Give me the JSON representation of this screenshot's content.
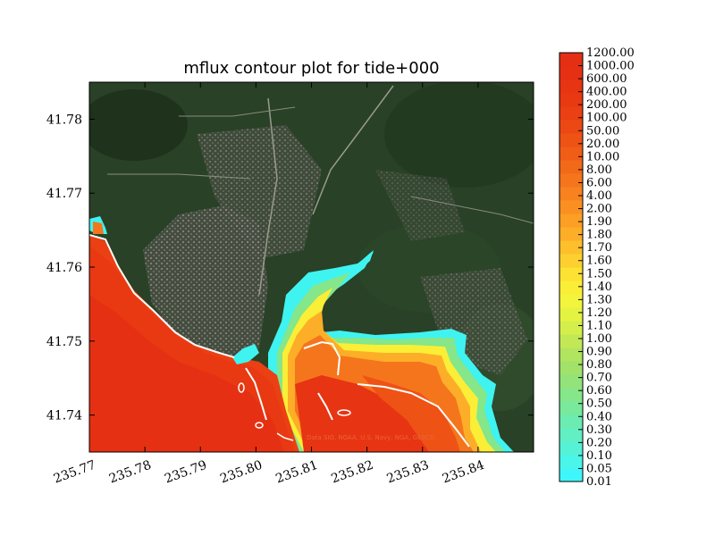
{
  "chart_data": {
    "type": "heatmap",
    "title": "mflux contour plot for tide+000",
    "xlabel": "",
    "ylabel": "",
    "xlim": [
      235.77,
      235.85
    ],
    "ylim": [
      41.735,
      41.785
    ],
    "x_ticks": [
      "235.77",
      "235.78",
      "235.79",
      "235.80",
      "235.81",
      "235.82",
      "235.83",
      "235.84"
    ],
    "y_ticks": [
      "41.74",
      "41.75",
      "41.76",
      "41.77",
      "41.78"
    ],
    "colorbar": {
      "levels": [
        "0.01",
        "0.05",
        "0.10",
        "0.20",
        "0.30",
        "0.40",
        "0.50",
        "0.60",
        "0.70",
        "0.80",
        "0.90",
        "1.00",
        "1.10",
        "1.20",
        "1.30",
        "1.40",
        "1.50",
        "1.60",
        "1.70",
        "1.80",
        "1.90",
        "2.00",
        "4.00",
        "6.00",
        "8.00",
        "10.00",
        "20.00",
        "50.00",
        "100.00",
        "200.00",
        "400.00",
        "600.00",
        "1000.00",
        "1200.00"
      ],
      "colors": [
        "#3ff7fb",
        "#4af5e9",
        "#55f2d6",
        "#61efc3",
        "#6cecb0",
        "#78e99d",
        "#85e68a",
        "#93e37a",
        "#a1e26b",
        "#b1e45f",
        "#c2e955",
        "#d4ef4b",
        "#e4f342",
        "#f2f53b",
        "#fbee36",
        "#fde133",
        "#fdd02f",
        "#fdbf2c",
        "#fdae28",
        "#fd9e25",
        "#fb9022",
        "#f8821f",
        "#f5751c",
        "#f26919",
        "#f05d17",
        "#ee5215",
        "#ec4814",
        "#ea4013",
        "#e83912",
        "#e73412",
        "#e63013",
        "#e52f15"
      ]
    },
    "grid": false,
    "background": "satellite imagery",
    "attribution": "Data SIO, NOAA, U.S. Navy, NGA, GEBCO"
  }
}
